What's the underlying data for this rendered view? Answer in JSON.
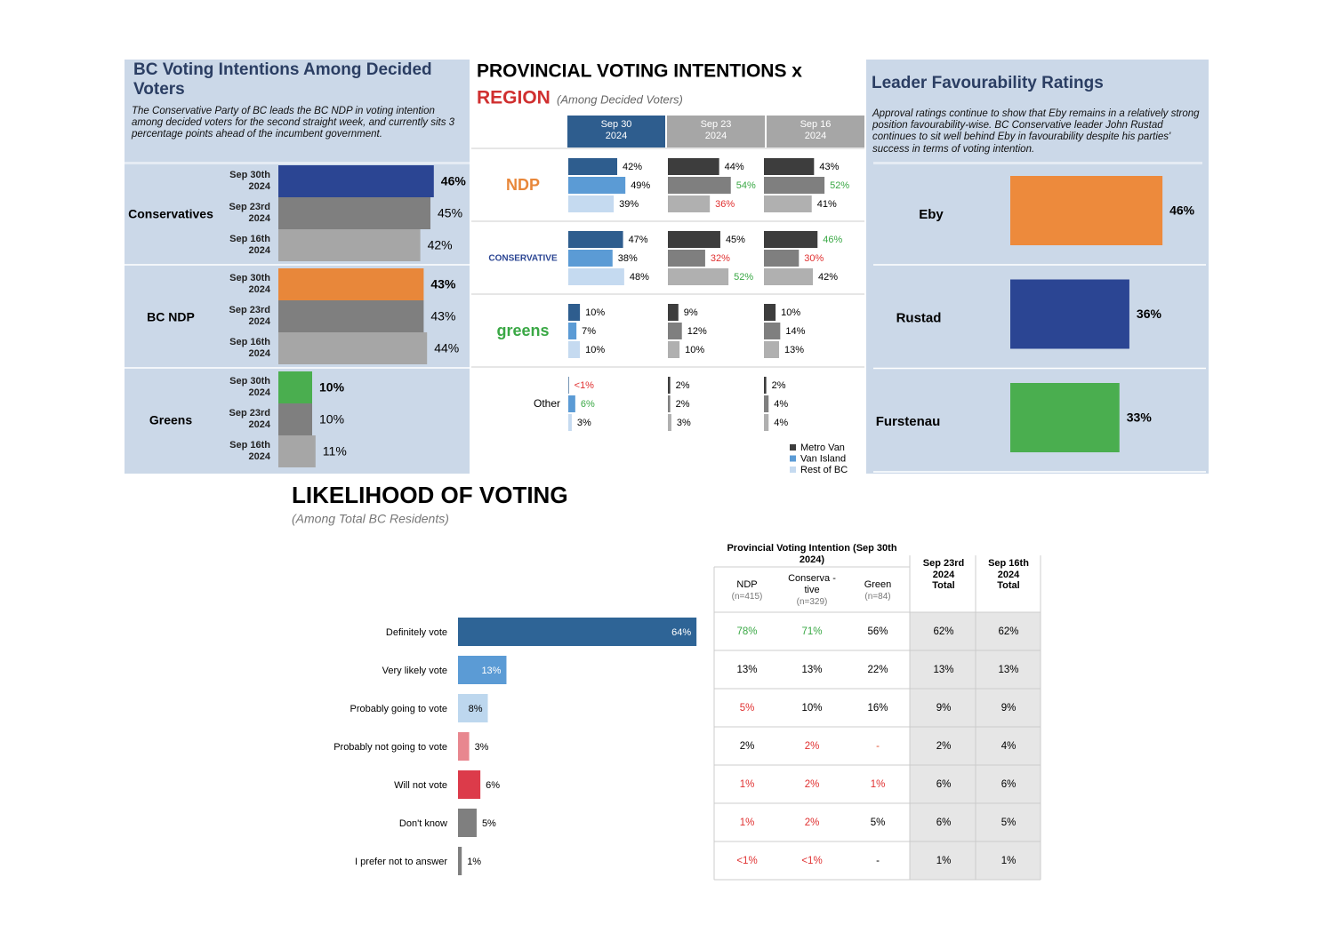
{
  "chart_data": [
    {
      "type": "grouped-hbar",
      "title": "BC Voting Intentions Among Decided Voters",
      "subtitle": "The Conservative Party of BC leads the BC NDP in voting intention among decided voters for the second straight week, and currently sits 3 percentage points ahead of the incumbent government.",
      "categories": [
        "Conservatives",
        "BC NDP",
        "Greens"
      ],
      "series": [
        {
          "name": "Sep 30th 2024",
          "colors": [
            "#2b4593",
            "#e8873a",
            "#4aae4f"
          ],
          "values": [
            46,
            43,
            10
          ],
          "value_labels": [
            "46%",
            "43%",
            "10%"
          ]
        },
        {
          "name": "Sep 23rd 2024",
          "color": "#7f7f7f",
          "values": [
            45,
            43,
            10
          ],
          "value_labels": [
            "45%",
            "43%",
            "10%"
          ]
        },
        {
          "name": "Sep 16th 2024",
          "color": "#a6a6a6",
          "values": [
            42,
            44,
            11
          ],
          "value_labels": [
            "42%",
            "44%",
            "11%"
          ]
        }
      ]
    },
    {
      "type": "panel-bar",
      "title": "PROVINCIAL VOTING INTENTIONS x",
      "title2": "REGION",
      "subtitle": "(Among Decided Voters)",
      "columns": [
        "Sep 30 2024",
        "Sep 23 2024",
        "Sep 16 2024"
      ],
      "column_colors": [
        "#2e5d8e",
        "#a6a6a6",
        "#a6a6a6"
      ],
      "series": [
        {
          "name": "Metro Van",
          "color": "#2e5d8e",
          "past_color": "#3d3d3d"
        },
        {
          "name": "Van Island",
          "color": "#5b9bd5",
          "past_color": "#7f7f7f"
        },
        {
          "name": "Rest of BC",
          "color": "#c5daf0",
          "past_color": "#b0b0b0"
        }
      ],
      "rows": [
        {
          "name": "NDP",
          "color": "#e8873a",
          "values": [
            [
              42,
              49,
              39
            ],
            [
              44,
              54,
              36
            ],
            [
              43,
              52,
              41
            ]
          ],
          "value_labels": [
            [
              "42%",
              "49%",
              "39%"
            ],
            [
              "44%",
              "54%",
              "36%"
            ],
            [
              "43%",
              "52%",
              "41%"
            ]
          ],
          "label_colors": [
            [
              "#000000",
              "#000000",
              "#000000"
            ],
            [
              "#000000",
              "#3aa845",
              "#e03030"
            ],
            [
              "#000000",
              "#3aa845",
              "#000000"
            ]
          ]
        },
        {
          "name": "CONSERVATIVE",
          "color": "#2b4593",
          "values": [
            [
              47,
              38,
              48
            ],
            [
              45,
              32,
              52
            ],
            [
              46,
              30,
              42
            ]
          ],
          "value_labels": [
            [
              "47%",
              "38%",
              "48%"
            ],
            [
              "45%",
              "32%",
              "52%"
            ],
            [
              "46%",
              "30%",
              "42%"
            ]
          ],
          "label_colors": [
            [
              "#000000",
              "#000000",
              "#000000"
            ],
            [
              "#000000",
              "#e03030",
              "#3aa845"
            ],
            [
              "#3aa845",
              "#e03030",
              "#000000"
            ]
          ]
        },
        {
          "name": "greens",
          "color": "#3aa845",
          "values": [
            [
              10,
              7,
              10
            ],
            [
              9,
              12,
              10
            ],
            [
              10,
              14,
              13
            ]
          ],
          "value_labels": [
            [
              "10%",
              "7%",
              "10%"
            ],
            [
              "9%",
              "12%",
              "10%"
            ],
            [
              "10%",
              "14%",
              "13%"
            ]
          ],
          "label_colors": [
            [
              "#000000",
              "#000000",
              "#000000"
            ],
            [
              "#000000",
              "#000000",
              "#000000"
            ],
            [
              "#000000",
              "#000000",
              "#000000"
            ]
          ]
        },
        {
          "name": "Other",
          "color": "#000000",
          "values": [
            [
              0.5,
              6,
              3
            ],
            [
              2,
              2,
              3
            ],
            [
              2,
              4,
              4
            ]
          ],
          "value_labels": [
            [
              "<1%",
              "6%",
              "3%"
            ],
            [
              "2%",
              "2%",
              "3%"
            ],
            [
              "2%",
              "4%",
              "4%"
            ]
          ],
          "label_colors": [
            [
              "#e03030",
              "#3aa845",
              "#000000"
            ],
            [
              "#000000",
              "#000000",
              "#000000"
            ],
            [
              "#000000",
              "#000000",
              "#000000"
            ]
          ]
        }
      ]
    },
    {
      "type": "hbar",
      "title": "Leader Favourability Ratings",
      "subtitle": "Approval ratings continue to show that Eby remains in a relatively strong position favourability-wise. BC Conservative leader John Rustad continues to sit well behind Eby in favourability despite his parties' success in terms of voting intention.",
      "categories": [
        "Eby",
        "Rustad",
        "Furstenau"
      ],
      "values": [
        46,
        36,
        33
      ],
      "value_labels": [
        "46%",
        "36%",
        "33%"
      ],
      "colors": [
        "#ed8a3c",
        "#2b4593",
        "#4aae4f"
      ]
    },
    {
      "type": "hbar",
      "title": "LIKELIHOOD OF VOTING",
      "subtitle": "(Among Total BC Residents)",
      "categories": [
        "Definitely vote",
        "Very likely vote",
        "Probably going to vote",
        "Probably not going to vote",
        "Will not vote",
        "Don't know",
        "I prefer not to answer"
      ],
      "values": [
        64,
        13,
        8,
        3,
        6,
        5,
        1
      ],
      "value_labels": [
        "64%",
        "13%",
        "8%",
        "3%",
        "6%",
        "5%",
        "1%"
      ],
      "colors": [
        "#2e6496",
        "#5b9bd5",
        "#bdd7ee",
        "#e8878f",
        "#dc3b4a",
        "#7f7f7f",
        "#7f7f7f"
      ]
    }
  ],
  "table": {
    "group_header": "Provincial Voting Intention (Sep 30th 2024)",
    "columns": [
      {
        "label": "NDP",
        "n": "(n=415)"
      },
      {
        "label": "Conserva -tive",
        "n": "(n=329)"
      },
      {
        "label": "Green",
        "n": "(n=84)"
      },
      {
        "label": "Sep 23rd 2024 Total"
      },
      {
        "label": "Sep 16th 2024 Total"
      }
    ],
    "rows": [
      [
        "78%",
        "71%",
        "56%",
        "62%",
        "62%"
      ],
      [
        "13%",
        "13%",
        "22%",
        "13%",
        "13%"
      ],
      [
        "5%",
        "10%",
        "16%",
        "9%",
        "9%"
      ],
      [
        "2%",
        "2%",
        "-",
        "2%",
        "4%"
      ],
      [
        "1%",
        "2%",
        "1%",
        "6%",
        "6%"
      ],
      [
        "1%",
        "2%",
        "5%",
        "6%",
        "5%"
      ],
      [
        "<1%",
        "<1%",
        "-",
        "1%",
        "1%"
      ]
    ],
    "colors": [
      [
        "#3aa845",
        "#3aa845",
        "#000000",
        "#000000",
        "#000000"
      ],
      [
        "#000000",
        "#000000",
        "#000000",
        "#000000",
        "#000000"
      ],
      [
        "#e03030",
        "#000000",
        "#000000",
        "#000000",
        "#000000"
      ],
      [
        "#000000",
        "#e03030",
        "#e05030",
        "#000000",
        "#000000"
      ],
      [
        "#e03030",
        "#e03030",
        "#e03030",
        "#000000",
        "#000000"
      ],
      [
        "#e03030",
        "#e03030",
        "#000000",
        "#000000",
        "#000000"
      ],
      [
        "#e03030",
        "#e03030",
        "#000000",
        "#000000",
        "#000000"
      ]
    ]
  }
}
